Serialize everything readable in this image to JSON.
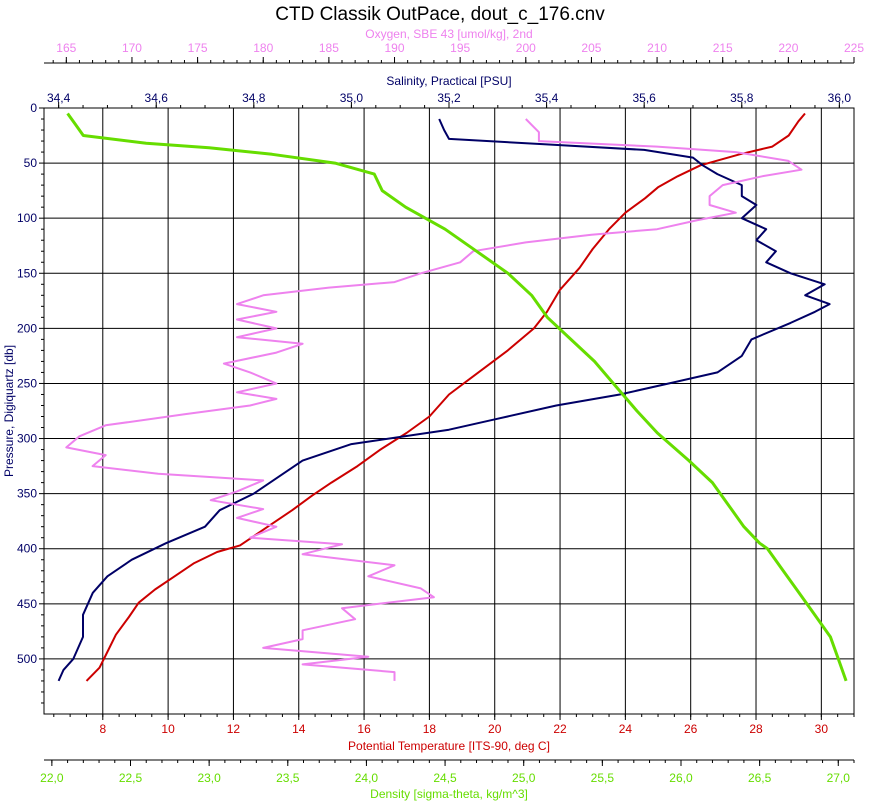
{
  "chart_data": {
    "type": "line",
    "title": "CTD Classik OutPace, dout_c_176.cnv",
    "ylabel": "Pressure, Digiquartz [db]",
    "ylim": [
      0,
      550
    ],
    "y_inverted": true,
    "grid": true,
    "y_ticks": [
      0,
      50,
      100,
      150,
      200,
      250,
      300,
      350,
      400,
      450,
      500
    ],
    "axes": {
      "oxygen": {
        "label": "Oxygen, SBE 43 [umol/kg], 2nd",
        "position": "top-outer",
        "color": "#ee82ee",
        "range": [
          163.3,
          225
        ],
        "ticks": [
          "165",
          "170",
          "175",
          "180",
          "185",
          "190",
          "195",
          "200",
          "205",
          "210",
          "215",
          "220",
          "225"
        ]
      },
      "salinity": {
        "label": "Salinity, Practical [PSU]",
        "position": "top-inner",
        "color": "#000066",
        "range": [
          34.37,
          36.03
        ],
        "ticks": [
          "34,4",
          "34,6",
          "34,8",
          "35,0",
          "35,2",
          "35,4",
          "35,6",
          "35,8",
          "36,0"
        ]
      },
      "temperature": {
        "label": "Potential Temperature [ITS-90, deg C]",
        "position": "bottom-inner",
        "color": "#cc0000",
        "range": [
          6.2,
          31.0
        ],
        "ticks": [
          "8",
          "10",
          "12",
          "14",
          "16",
          "18",
          "20",
          "22",
          "24",
          "26",
          "28",
          "30"
        ]
      },
      "density": {
        "label": "Density [sigma-theta, kg/m^3]",
        "position": "bottom-outer",
        "color": "#66dd00",
        "range": [
          21.95,
          27.1
        ],
        "ticks": [
          "22,0",
          "22,5",
          "23,0",
          "23,5",
          "24,0",
          "24,5",
          "25,0",
          "25,5",
          "26,0",
          "26,5",
          "27,0"
        ]
      }
    },
    "series": [
      {
        "name": "Potential Temperature",
        "axis": "temperature",
        "color": "#cc0000",
        "points": [
          [
            29.5,
            5
          ],
          [
            29.3,
            12
          ],
          [
            29.0,
            25
          ],
          [
            28.5,
            35
          ],
          [
            27.5,
            42
          ],
          [
            26.3,
            52
          ],
          [
            25.6,
            62
          ],
          [
            25.0,
            72
          ],
          [
            24.6,
            82
          ],
          [
            24.0,
            95
          ],
          [
            23.5,
            110
          ],
          [
            23.0,
            128
          ],
          [
            22.6,
            145
          ],
          [
            22.0,
            165
          ],
          [
            21.6,
            185
          ],
          [
            21.2,
            200
          ],
          [
            20.4,
            220
          ],
          [
            19.5,
            240
          ],
          [
            18.6,
            260
          ],
          [
            18.0,
            280
          ],
          [
            17.3,
            295
          ],
          [
            16.5,
            310
          ],
          [
            15.8,
            325
          ],
          [
            15.0,
            340
          ],
          [
            14.4,
            352
          ],
          [
            13.8,
            365
          ],
          [
            13.3,
            375
          ],
          [
            12.8,
            385
          ],
          [
            12.2,
            397
          ],
          [
            11.5,
            403
          ],
          [
            10.8,
            413
          ],
          [
            10.2,
            425
          ],
          [
            9.6,
            437
          ],
          [
            9.1,
            449
          ],
          [
            8.8,
            462
          ],
          [
            8.4,
            478
          ],
          [
            8.1,
            496
          ],
          [
            7.9,
            508
          ],
          [
            7.5,
            520
          ]
        ]
      },
      {
        "name": "Salinity",
        "axis": "salinity",
        "color": "#000066",
        "points": [
          [
            35.18,
            10
          ],
          [
            35.19,
            20
          ],
          [
            35.2,
            28
          ],
          [
            35.4,
            33
          ],
          [
            35.6,
            38
          ],
          [
            35.7,
            45
          ],
          [
            35.72,
            52
          ],
          [
            35.75,
            60
          ],
          [
            35.8,
            70
          ],
          [
            35.8,
            80
          ],
          [
            35.83,
            88
          ],
          [
            35.8,
            100
          ],
          [
            35.85,
            110
          ],
          [
            35.83,
            120
          ],
          [
            35.87,
            130
          ],
          [
            35.85,
            140
          ],
          [
            35.9,
            150
          ],
          [
            35.97,
            160
          ],
          [
            35.93,
            170
          ],
          [
            35.98,
            178
          ],
          [
            35.95,
            185
          ],
          [
            35.9,
            195
          ],
          [
            35.82,
            210
          ],
          [
            35.8,
            225
          ],
          [
            35.75,
            240
          ],
          [
            35.65,
            250
          ],
          [
            35.55,
            260
          ],
          [
            35.42,
            270
          ],
          [
            35.3,
            282
          ],
          [
            35.2,
            292
          ],
          [
            35.0,
            305
          ],
          [
            34.9,
            320
          ],
          [
            34.85,
            335
          ],
          [
            34.8,
            350
          ],
          [
            34.73,
            365
          ],
          [
            34.7,
            380
          ],
          [
            34.62,
            395
          ],
          [
            34.55,
            410
          ],
          [
            34.5,
            425
          ],
          [
            34.47,
            440
          ],
          [
            34.45,
            460
          ],
          [
            34.45,
            480
          ],
          [
            34.43,
            500
          ],
          [
            34.41,
            510
          ],
          [
            34.4,
            520
          ]
        ]
      },
      {
        "name": "Oxygen",
        "axis": "oxygen",
        "color": "#ee82ee",
        "points": [
          [
            200,
            10
          ],
          [
            201,
            22
          ],
          [
            201,
            30
          ],
          [
            210,
            35
          ],
          [
            216,
            40
          ],
          [
            220,
            48
          ],
          [
            221,
            56
          ],
          [
            218,
            62
          ],
          [
            215,
            70
          ],
          [
            214,
            80
          ],
          [
            214,
            88
          ],
          [
            216,
            95
          ],
          [
            213,
            102
          ],
          [
            210,
            110
          ],
          [
            205,
            115
          ],
          [
            200,
            122
          ],
          [
            196,
            130
          ],
          [
            195,
            140
          ],
          [
            192,
            150
          ],
          [
            190,
            158
          ],
          [
            185,
            163
          ],
          [
            180,
            170
          ],
          [
            178,
            178
          ],
          [
            181,
            185
          ],
          [
            178,
            192
          ],
          [
            181,
            200
          ],
          [
            178,
            208
          ],
          [
            183,
            214
          ],
          [
            181,
            222
          ],
          [
            177,
            232
          ],
          [
            179,
            240
          ],
          [
            181,
            250
          ],
          [
            178,
            258
          ],
          [
            181,
            264
          ],
          [
            179,
            270
          ],
          [
            174,
            278
          ],
          [
            168,
            288
          ],
          [
            166,
            298
          ],
          [
            165,
            308
          ],
          [
            168,
            315
          ],
          [
            167,
            325
          ],
          [
            172,
            332
          ],
          [
            180,
            338
          ],
          [
            178,
            348
          ],
          [
            176,
            356
          ],
          [
            180,
            364
          ],
          [
            178,
            372
          ],
          [
            181,
            380
          ],
          [
            179,
            390
          ],
          [
            186,
            396
          ],
          [
            183,
            405
          ],
          [
            190,
            415
          ],
          [
            188,
            425
          ],
          [
            192,
            436
          ],
          [
            193,
            444
          ],
          [
            186,
            454
          ],
          [
            187,
            464
          ],
          [
            183,
            474
          ],
          [
            183,
            482
          ],
          [
            180,
            490
          ],
          [
            188,
            498
          ],
          [
            183,
            505
          ],
          [
            190,
            512
          ],
          [
            190,
            520
          ]
        ]
      },
      {
        "name": "Density",
        "axis": "density",
        "color": "#66dd00",
        "points": [
          [
            22.1,
            5
          ],
          [
            22.15,
            15
          ],
          [
            22.2,
            25
          ],
          [
            22.6,
            32
          ],
          [
            23.0,
            36
          ],
          [
            23.4,
            42
          ],
          [
            23.8,
            50
          ],
          [
            24.05,
            60
          ],
          [
            24.1,
            75
          ],
          [
            24.25,
            90
          ],
          [
            24.5,
            110
          ],
          [
            24.7,
            130
          ],
          [
            24.9,
            150
          ],
          [
            25.05,
            170
          ],
          [
            25.15,
            190
          ],
          [
            25.3,
            210
          ],
          [
            25.45,
            230
          ],
          [
            25.6,
            255
          ],
          [
            25.72,
            275
          ],
          [
            25.85,
            295
          ],
          [
            26.05,
            320
          ],
          [
            26.2,
            340
          ],
          [
            26.3,
            360
          ],
          [
            26.4,
            380
          ],
          [
            26.5,
            395
          ],
          [
            26.55,
            400
          ],
          [
            26.65,
            420
          ],
          [
            26.75,
            440
          ],
          [
            26.85,
            460
          ],
          [
            26.95,
            480
          ],
          [
            27.0,
            500
          ],
          [
            27.05,
            520
          ]
        ]
      }
    ]
  }
}
